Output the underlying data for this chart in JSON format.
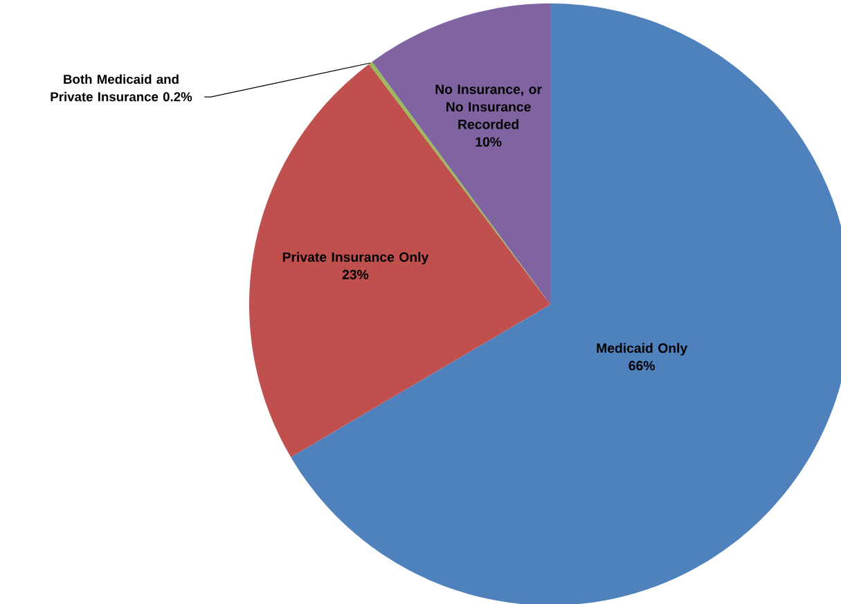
{
  "chart_data": {
    "type": "pie",
    "categories": [
      "Medicaid Only",
      "Private Insurance Only",
      "Both Medicaid and Private Insurance",
      "No Insurance, or No Insurance Recorded"
    ],
    "values": [
      66,
      23,
      0.2,
      10
    ],
    "colors": [
      "#4f81bd",
      "#c0504d",
      "#9bbb59",
      "#8064a2"
    ],
    "value_labels": [
      "66%",
      "23%",
      "0.2%",
      "10%"
    ]
  }
}
